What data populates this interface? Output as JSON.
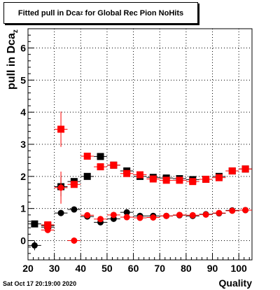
{
  "title": {
    "main": "Fitted pull in Dca",
    "sub": "z",
    "suffix": " for Global Rec Pion NoHits"
  },
  "stamp": "Sat Oct 17 20:19:00 2020",
  "chart_data": {
    "type": "scatter",
    "title": "Fitted pull in Dca_z for Global Rec Pion NoHits",
    "xlabel": "Quality",
    "ylabel": "pull in Dca_z",
    "xlim": [
      20,
      105
    ],
    "ylim": [
      -0.6,
      6.6
    ],
    "xticks": [
      20,
      30,
      40,
      50,
      60,
      70,
      80,
      90,
      100
    ],
    "yticks": [
      0,
      1,
      2,
      3,
      4,
      5,
      6
    ],
    "grid": true,
    "x_error": 2.5,
    "series": [
      {
        "marker": "circle",
        "color": "#000000",
        "points": [
          {
            "x": 22.5,
            "y": -0.15,
            "err": 0.15
          },
          {
            "x": 27.5,
            "y": 0.42,
            "err": 0.08
          },
          {
            "x": 32.5,
            "y": 0.86,
            "err": 0.1
          },
          {
            "x": 37.5,
            "y": 0.97,
            "err": 0.05
          },
          {
            "x": 42.5,
            "y": 0.75,
            "err": 0.05
          },
          {
            "x": 47.5,
            "y": 0.57,
            "err": 0.05
          },
          {
            "x": 52.5,
            "y": 0.68,
            "err": 0.04
          },
          {
            "x": 57.5,
            "y": 0.88,
            "err": 0.04
          },
          {
            "x": 62.5,
            "y": 0.77,
            "err": 0.03
          },
          {
            "x": 67.5,
            "y": 0.77,
            "err": 0.03
          },
          {
            "x": 72.5,
            "y": 0.77,
            "err": 0.03
          },
          {
            "x": 77.5,
            "y": 0.79,
            "err": 0.03
          },
          {
            "x": 82.5,
            "y": 0.77,
            "err": 0.03
          },
          {
            "x": 87.5,
            "y": 0.82,
            "err": 0.03
          },
          {
            "x": 92.5,
            "y": 0.85,
            "err": 0.03
          },
          {
            "x": 97.5,
            "y": 0.94,
            "err": 0.03
          },
          {
            "x": 102.5,
            "y": 0.95,
            "err": 0.03
          }
        ]
      },
      {
        "marker": "square",
        "color": "#000000",
        "points": [
          {
            "x": 22.5,
            "y": 0.52,
            "err": 0.05
          },
          {
            "x": 27.5,
            "y": 0.47,
            "err": 0.05
          },
          {
            "x": 32.5,
            "y": 1.68,
            "err": 0.3
          },
          {
            "x": 37.5,
            "y": 1.84,
            "err": 0.1
          },
          {
            "x": 42.5,
            "y": 2.0,
            "err": 0.05
          },
          {
            "x": 47.5,
            "y": 2.62,
            "err": 0.05
          },
          {
            "x": 52.5,
            "y": 2.35,
            "err": 0.05
          },
          {
            "x": 57.5,
            "y": 2.17,
            "err": 0.04
          },
          {
            "x": 62.5,
            "y": 2.0,
            "err": 0.04
          },
          {
            "x": 67.5,
            "y": 1.97,
            "err": 0.04
          },
          {
            "x": 72.5,
            "y": 1.95,
            "err": 0.04
          },
          {
            "x": 77.5,
            "y": 1.93,
            "err": 0.04
          },
          {
            "x": 82.5,
            "y": 1.9,
            "err": 0.04
          },
          {
            "x": 87.5,
            "y": 1.91,
            "err": 0.04
          },
          {
            "x": 92.5,
            "y": 2.0,
            "err": 0.04
          },
          {
            "x": 97.5,
            "y": 2.17,
            "err": 0.04
          },
          {
            "x": 102.5,
            "y": 2.23,
            "err": 0.04
          }
        ]
      },
      {
        "marker": "circle",
        "color": "#ff0000",
        "points": [
          {
            "x": 27.5,
            "y": 0.33,
            "err": 0.08
          },
          {
            "x": 32.5,
            "y": 1.65,
            "err": 0.5
          },
          {
            "x": 37.5,
            "y": 0.0,
            "err": 0.05
          },
          {
            "x": 42.5,
            "y": 0.79,
            "err": 0.05
          },
          {
            "x": 47.5,
            "y": 0.67,
            "err": 0.05
          },
          {
            "x": 52.5,
            "y": 0.8,
            "err": 0.04
          },
          {
            "x": 57.5,
            "y": 0.73,
            "err": 0.04
          },
          {
            "x": 62.5,
            "y": 0.71,
            "err": 0.03
          },
          {
            "x": 67.5,
            "y": 0.72,
            "err": 0.03
          },
          {
            "x": 72.5,
            "y": 0.77,
            "err": 0.03
          },
          {
            "x": 77.5,
            "y": 0.8,
            "err": 0.03
          },
          {
            "x": 82.5,
            "y": 0.79,
            "err": 0.03
          },
          {
            "x": 87.5,
            "y": 0.81,
            "err": 0.03
          },
          {
            "x": 92.5,
            "y": 0.86,
            "err": 0.03
          },
          {
            "x": 97.5,
            "y": 0.93,
            "err": 0.03
          },
          {
            "x": 102.5,
            "y": 0.95,
            "err": 0.03
          }
        ]
      },
      {
        "marker": "square",
        "color": "#ff0000",
        "points": [
          {
            "x": 27.5,
            "y": 0.49,
            "err": 0.06
          },
          {
            "x": 32.5,
            "y": 3.47,
            "err": 0.55
          },
          {
            "x": 37.5,
            "y": 1.75,
            "err": 0.1
          },
          {
            "x": 42.5,
            "y": 2.63,
            "err": 0.06
          },
          {
            "x": 47.5,
            "y": 2.3,
            "err": 0.05
          },
          {
            "x": 52.5,
            "y": 2.35,
            "err": 0.05
          },
          {
            "x": 57.5,
            "y": 2.09,
            "err": 0.04
          },
          {
            "x": 62.5,
            "y": 2.05,
            "err": 0.04
          },
          {
            "x": 67.5,
            "y": 1.92,
            "err": 0.04
          },
          {
            "x": 72.5,
            "y": 1.88,
            "err": 0.04
          },
          {
            "x": 77.5,
            "y": 1.88,
            "err": 0.04
          },
          {
            "x": 82.5,
            "y": 1.84,
            "err": 0.04
          },
          {
            "x": 87.5,
            "y": 1.91,
            "err": 0.04
          },
          {
            "x": 92.5,
            "y": 1.96,
            "err": 0.04
          },
          {
            "x": 97.5,
            "y": 2.17,
            "err": 0.04
          },
          {
            "x": 102.5,
            "y": 2.23,
            "err": 0.04
          }
        ]
      }
    ]
  }
}
